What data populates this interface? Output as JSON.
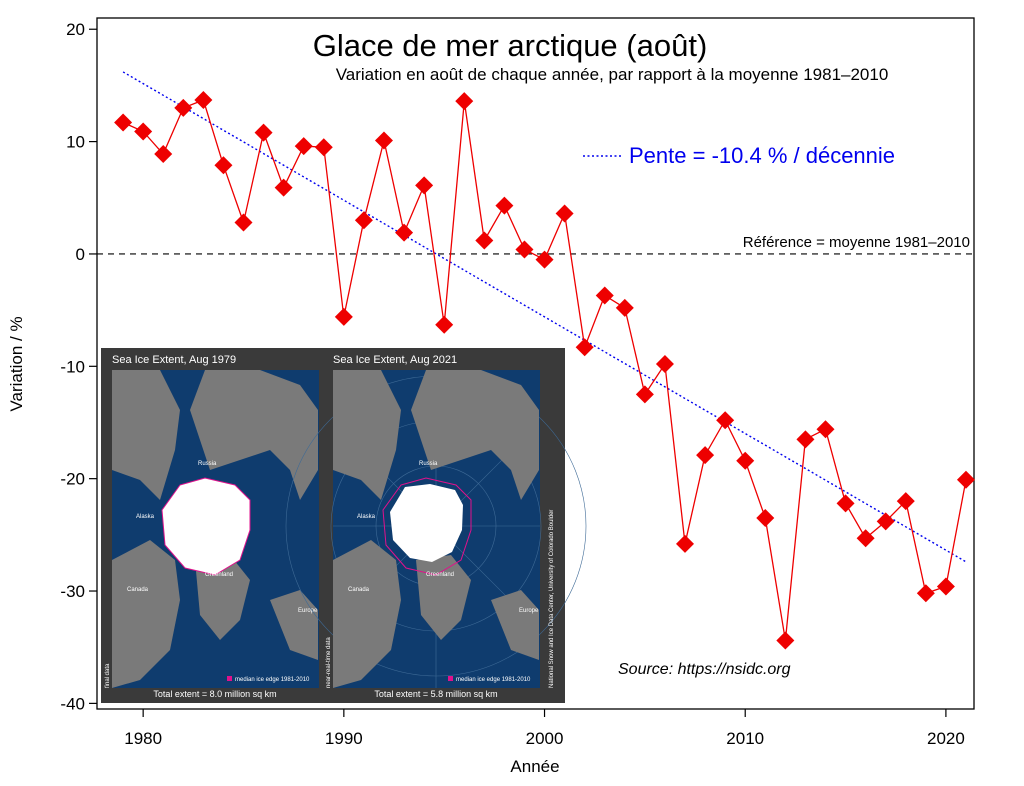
{
  "chart_data": {
    "type": "line",
    "title": "Glace de mer arctique (août)",
    "subtitle": "Variation en août de chaque année, par rapport à la moyenne 1981–2010",
    "xlabel": "Année",
    "ylabel": "Variation / %",
    "xlim": [
      1977.7,
      2021.4
    ],
    "ylim": [
      -40.5,
      21
    ],
    "xticks": [
      1980,
      1990,
      2000,
      2010,
      2020
    ],
    "yticks": [
      -40,
      -30,
      -20,
      -10,
      0,
      10,
      20
    ],
    "series": [
      {
        "color": "#ee0000",
        "marker": "diamond",
        "x": [
          1979,
          1980,
          1981,
          1982,
          1983,
          1984,
          1985,
          1986,
          1987,
          1988,
          1989,
          1990,
          1991,
          1992,
          1993,
          1994,
          1995,
          1996,
          1997,
          1998,
          1999,
          2000,
          2001,
          2002,
          2003,
          2004,
          2005,
          2006,
          2007,
          2008,
          2009,
          2010,
          2011,
          2012,
          2013,
          2014,
          2015,
          2016,
          2017,
          2018,
          2019,
          2020,
          2021
        ],
        "values": [
          11.7,
          10.9,
          8.9,
          13.0,
          13.7,
          7.9,
          2.8,
          10.8,
          5.9,
          9.6,
          9.5,
          -5.6,
          3.0,
          10.1,
          1.9,
          6.1,
          -6.3,
          13.6,
          1.2,
          4.3,
          0.4,
          -0.5,
          3.6,
          -8.3,
          -3.7,
          -4.8,
          -12.5,
          -9.8,
          -25.8,
          -17.9,
          -14.8,
          -18.4,
          -23.5,
          -34.4,
          -16.5,
          -15.6,
          -22.2,
          -25.3,
          -23.8,
          -22.0,
          -30.2,
          -29.6,
          -20.1
        ]
      }
    ],
    "trend": {
      "label": "Pente = -10.4 % / décennie",
      "color": "#0000ee",
      "style": "dotted",
      "x": [
        1979,
        2021
      ],
      "values": [
        16.2,
        -27.4
      ]
    },
    "reference": {
      "label": "Référence = moyenne 1981–2010",
      "value": 0,
      "style": "dashed"
    },
    "source": "Source: https://nsidc.org",
    "legend_position": "top-right",
    "grid": false
  },
  "inset": {
    "maps": [
      {
        "title": "Sea Ice Extent, Aug 1979",
        "total": "Total extent = 8.0 million sq km",
        "legend": "median ice edge 1981-2010",
        "side_label": "final data",
        "place_labels": [
          "Russia",
          "Alaska",
          "Canada",
          "Greenland",
          "Europe"
        ]
      },
      {
        "title": "Sea Ice Extent, Aug 2021",
        "total": "Total extent = 5.8 million sq km",
        "legend": "median ice edge 1981-2010",
        "side_label": "near-real-time data",
        "place_labels": [
          "Russia",
          "Alaska",
          "Canada",
          "Greenland",
          "Europe"
        ]
      }
    ],
    "credit": "National Snow and Ice Data Center, University of Colorado Boulder"
  }
}
